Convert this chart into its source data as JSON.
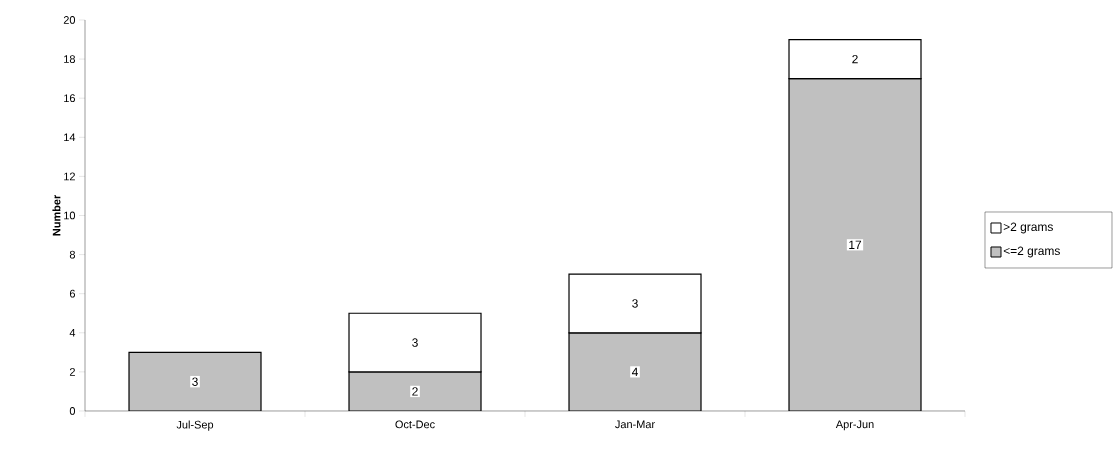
{
  "chart_data": {
    "type": "bar",
    "stacked": true,
    "ylabel": "Number",
    "categories": [
      "Jul-Sep",
      "Oct-Dec",
      "Jan-Mar",
      "Apr-Jun"
    ],
    "series": [
      {
        "name": "<=2 grams",
        "color": "#c0c0c0",
        "values": [
          3,
          2,
          4,
          17
        ]
      },
      {
        "name": ">2 grams",
        "color": "#ffffff",
        "values": [
          null,
          3,
          3,
          2
        ]
      }
    ],
    "ylim": [
      0,
      20
    ],
    "yticks": [
      0,
      2,
      4,
      6,
      8,
      10,
      12,
      14,
      16,
      18,
      20
    ],
    "data_labels": true,
    "legend": "right",
    "grid": false
  }
}
